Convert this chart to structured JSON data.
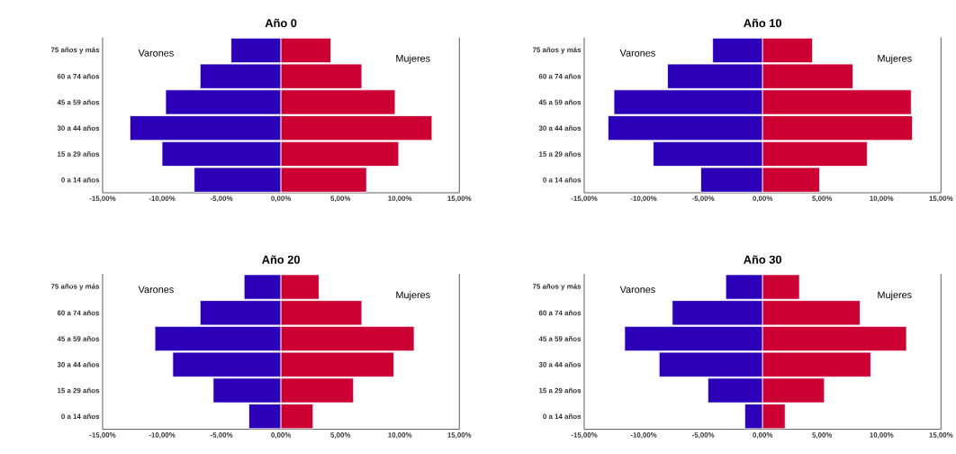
{
  "chart_data": [
    {
      "type": "bar",
      "orientation": "horizontal",
      "stacked": true,
      "title": "Año 0",
      "categories": [
        "75 años y más",
        "60 a 74 años",
        "45 a 59 años",
        "30 a 44 años",
        "15 a 29 años",
        "0 a 14 años"
      ],
      "series": [
        {
          "name": "Varones",
          "color": "#2b00b8",
          "values": [
            -4.2,
            -6.8,
            -9.7,
            -12.7,
            -10.0,
            -7.3
          ]
        },
        {
          "name": "Mujeres",
          "color": "#cc0033",
          "values": [
            4.2,
            6.8,
            9.6,
            12.7,
            9.9,
            7.2
          ]
        }
      ],
      "xlim": [
        -15,
        15
      ],
      "xticks": [
        {
          "value": -15,
          "label": "-15,00%"
        },
        {
          "value": -10,
          "label": "-10,00%"
        },
        {
          "value": -5,
          "label": "-5,00%"
        },
        {
          "value": 0,
          "label": "0,00%"
        },
        {
          "value": 5,
          "label": "5,00%"
        },
        {
          "value": 10,
          "label": "10,00%"
        },
        {
          "value": 15,
          "label": "15,00%"
        }
      ]
    },
    {
      "type": "bar",
      "orientation": "horizontal",
      "stacked": true,
      "title": "Año 10",
      "categories": [
        "75 años y más",
        "60 a 74 años",
        "45 a 59 años",
        "30 a 44 años",
        "15 a 29 años",
        "0 a 14 años"
      ],
      "series": [
        {
          "name": "Varones",
          "color": "#2b00b8",
          "values": [
            -4.2,
            -8.0,
            -12.5,
            -13.0,
            -9.2,
            -5.2
          ]
        },
        {
          "name": "Mujeres",
          "color": "#cc0033",
          "values": [
            4.2,
            7.6,
            12.5,
            12.6,
            8.8,
            4.8
          ]
        }
      ],
      "xlim": [
        -15,
        15
      ],
      "xticks": [
        {
          "value": -15,
          "label": "-15,00%"
        },
        {
          "value": -10,
          "label": "-10,00%"
        },
        {
          "value": -5,
          "label": "-5,00%"
        },
        {
          "value": 0,
          "label": "0,00%"
        },
        {
          "value": 5,
          "label": "5,00%"
        },
        {
          "value": 10,
          "label": "10,00%"
        },
        {
          "value": 15,
          "label": "15,00%"
        }
      ]
    },
    {
      "type": "bar",
      "orientation": "horizontal",
      "stacked": true,
      "title": "Año 20",
      "categories": [
        "75 años y más",
        "60 a 74 años",
        "45 a 59 años",
        "30 a 44 años",
        "15 a 29 años",
        "0 a 14 años"
      ],
      "series": [
        {
          "name": "Varones",
          "color": "#2b00b8",
          "values": [
            -3.1,
            -6.8,
            -10.6,
            -9.1,
            -5.7,
            -2.7
          ]
        },
        {
          "name": "Mujeres",
          "color": "#cc0033",
          "values": [
            3.2,
            6.8,
            11.2,
            9.5,
            6.1,
            2.7
          ]
        }
      ],
      "xlim": [
        -15,
        15
      ],
      "xticks": [
        {
          "value": -15,
          "label": "-15,00%"
        },
        {
          "value": -10,
          "label": "-10,00%"
        },
        {
          "value": -5,
          "label": "-5,00%"
        },
        {
          "value": 0,
          "label": "0,00%"
        },
        {
          "value": 5,
          "label": "5,00%"
        },
        {
          "value": 10,
          "label": "10,00%"
        },
        {
          "value": 15,
          "label": "15,00%"
        }
      ]
    },
    {
      "type": "bar",
      "orientation": "horizontal",
      "stacked": true,
      "title": "Año 30",
      "categories": [
        "75 años y más",
        "60 a 74 años",
        "45 a 59 años",
        "30 a 44 años",
        "15 a 29 años",
        "0 a 14 años"
      ],
      "series": [
        {
          "name": "Varones",
          "color": "#2b00b8",
          "values": [
            -3.1,
            -7.6,
            -11.6,
            -8.7,
            -4.6,
            -1.5
          ]
        },
        {
          "name": "Mujeres",
          "color": "#cc0033",
          "values": [
            3.1,
            8.2,
            12.1,
            9.1,
            5.2,
            1.9
          ]
        }
      ],
      "xlim": [
        -15,
        15
      ],
      "xticks": [
        {
          "value": -15,
          "label": "-15,00%"
        },
        {
          "value": -10,
          "label": "-10,00%"
        },
        {
          "value": -5,
          "label": "-5,00%"
        },
        {
          "value": 0,
          "label": "0,00%"
        },
        {
          "value": 5,
          "label": "5,00%"
        },
        {
          "value": 10,
          "label": "10,00%"
        },
        {
          "value": 15,
          "label": "15,00%"
        }
      ]
    }
  ]
}
